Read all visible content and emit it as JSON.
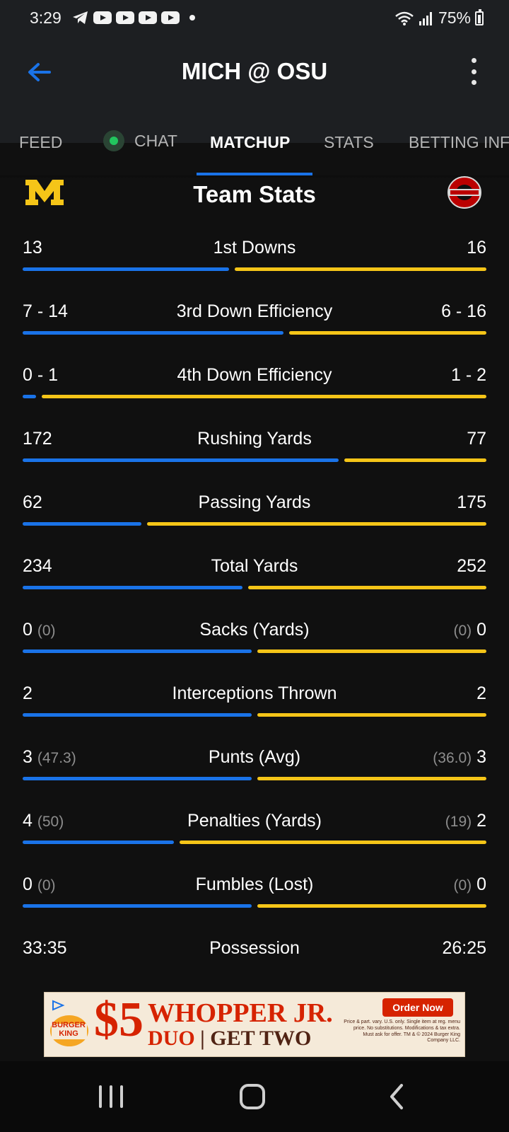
{
  "status_bar": {
    "time": "3:29",
    "battery": "75%",
    "icons": [
      "telegram-icon",
      "youtube-icon",
      "youtube-icon",
      "youtube-icon",
      "youtube-icon",
      "dot-icon",
      "wifi-icon",
      "signal-icon",
      "battery-icon"
    ]
  },
  "header": {
    "title": "MICH @ OSU",
    "back_icon": "arrow-left-icon",
    "menu_icon": "more-vertical-icon"
  },
  "tabs": [
    {
      "label": "FEED",
      "active": false
    },
    {
      "label": "CHAT",
      "active": false,
      "live": true
    },
    {
      "label": "MATCHUP",
      "active": true
    },
    {
      "label": "STATS",
      "active": false
    },
    {
      "label": "BETTING INFO",
      "active": false
    }
  ],
  "team_stats": {
    "title": "Team Stats",
    "left_team_logo": "michigan-logo",
    "right_team_logo": "ohio-state-logo",
    "left_color": "#1a73e8",
    "right_color": "#f5c518",
    "rows": [
      {
        "label": "1st Downs",
        "left": "13",
        "left_sub": "",
        "right": "16",
        "right_sub": "",
        "left_share": 0.45
      },
      {
        "label": "3rd Down Efficiency",
        "left": "7 - 14",
        "left_sub": "",
        "right": "6 - 16",
        "right_sub": "",
        "left_share": 0.57
      },
      {
        "label": "4th Down Efficiency",
        "left": "0 - 1",
        "left_sub": "",
        "right": "1 - 2",
        "right_sub": "",
        "left_share": 0.03
      },
      {
        "label": "Rushing Yards",
        "left": "172",
        "left_sub": "",
        "right": "77",
        "right_sub": "",
        "left_share": 0.69
      },
      {
        "label": "Passing Yards",
        "left": "62",
        "left_sub": "",
        "right": "175",
        "right_sub": "",
        "left_share": 0.26
      },
      {
        "label": "Total Yards",
        "left": "234",
        "left_sub": "",
        "right": "252",
        "right_sub": "",
        "left_share": 0.48
      },
      {
        "label": "Sacks (Yards)",
        "left": "0",
        "left_sub": "(0)",
        "right": "0",
        "right_sub": "(0)",
        "left_share": 0.5
      },
      {
        "label": "Interceptions Thrown",
        "left": "2",
        "left_sub": "",
        "right": "2",
        "right_sub": "",
        "left_share": 0.5
      },
      {
        "label": "Punts (Avg)",
        "left": "3",
        "left_sub": "(47.3)",
        "right": "3",
        "right_sub": "(36.0)",
        "left_share": 0.5
      },
      {
        "label": "Penalties (Yards)",
        "left": "4",
        "left_sub": "(50)",
        "right": "2",
        "right_sub": "(19)",
        "left_share": 0.33
      },
      {
        "label": "Fumbles (Lost)",
        "left": "0",
        "left_sub": "(0)",
        "right": "0",
        "right_sub": "(0)",
        "left_share": 0.5
      },
      {
        "label": "Possession",
        "left": "33:35",
        "left_sub": "",
        "right": "26:25",
        "right_sub": "",
        "left_share": null
      }
    ]
  },
  "ad": {
    "brand": "BURGER KING",
    "price": "$5",
    "headline1": "WHOPPER JR.",
    "headline2_a": "DUO",
    "headline2_sep": "|",
    "headline2_b": "GET TWO",
    "cta": "Order Now",
    "fine_print": "Price & part. vary. U.S. only. Single item at reg. menu price. No substitutions. Modifications & tax extra. Must ask for offer. TM & © 2024 Burger King Company LLC."
  },
  "nav_bar": {
    "icons": [
      "recent-apps-icon",
      "home-icon",
      "back-icon"
    ]
  }
}
